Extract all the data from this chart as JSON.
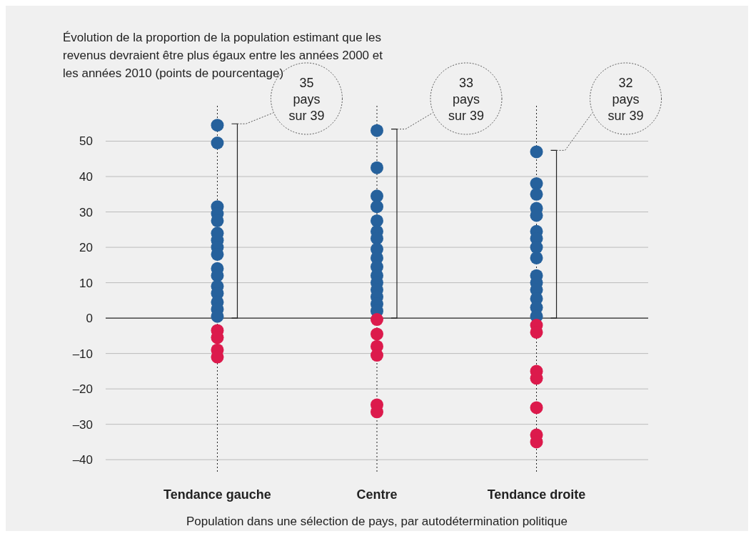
{
  "chart_data": {
    "type": "scatter",
    "ylabel": "Évolution de la proportion de la population estimant que les revenus devraient être plus égaux entre les années 2000 et les années 2010 (points de pourcentage)",
    "xlabel": "Population dans une sélection de pays, par autodétermination politique",
    "categories": [
      "Tendance gauche",
      "Centre",
      "Tendance droite"
    ],
    "ylim": [
      -44,
      60
    ],
    "yticks": [
      {
        "value": -40,
        "label": "–40"
      },
      {
        "value": -30,
        "label": "–30"
      },
      {
        "value": -20,
        "label": "–20"
      },
      {
        "value": -10,
        "label": "–10"
      },
      0,
      10,
      20,
      30,
      40,
      50
    ],
    "grid": true,
    "marker": "circle",
    "series": [
      {
        "color": "#26619c",
        "x": [
          "Tendance gauche",
          "Tendance gauche",
          "Tendance gauche",
          "Tendance gauche",
          "Tendance gauche",
          "Tendance gauche",
          "Tendance gauche",
          "Tendance gauche",
          "Tendance gauche",
          "Tendance gauche",
          "Tendance gauche",
          "Tendance gauche",
          "Tendance gauche",
          "Tendance gauche",
          "Tendance gauche",
          "Tendance gauche",
          "Centre",
          "Centre",
          "Centre",
          "Centre",
          "Centre",
          "Centre",
          "Centre",
          "Centre",
          "Centre",
          "Centre",
          "Centre",
          "Centre",
          "Centre",
          "Centre",
          "Centre",
          "Centre",
          "Tendance droite",
          "Tendance droite",
          "Tendance droite",
          "Tendance droite",
          "Tendance droite",
          "Tendance droite",
          "Tendance droite",
          "Tendance droite",
          "Tendance droite",
          "Tendance droite",
          "Tendance droite",
          "Tendance droite",
          "Tendance droite",
          "Tendance droite",
          "Tendance droite"
        ],
        "values": [
          54.5,
          49.5,
          31.5,
          29.5,
          27.5,
          24,
          22,
          20,
          18,
          14,
          12,
          9,
          7,
          4.5,
          2.5,
          0.5,
          53,
          42.5,
          34.5,
          31.5,
          27.5,
          24.5,
          22.5,
          19.5,
          17,
          14.5,
          12,
          10,
          8,
          6,
          4,
          2,
          47,
          38,
          35,
          31,
          29,
          24.5,
          22.5,
          20,
          17,
          12,
          10,
          8,
          5.5,
          3,
          0.5
        ]
      },
      {
        "color": "#dc1a4c",
        "x": [
          "Tendance gauche",
          "Tendance gauche",
          "Tendance gauche",
          "Tendance gauche",
          "Centre",
          "Centre",
          "Centre",
          "Centre",
          "Centre",
          "Centre",
          "Tendance droite",
          "Tendance droite",
          "Tendance droite",
          "Tendance droite",
          "Tendance droite",
          "Tendance droite",
          "Tendance droite"
        ],
        "values": [
          -3.5,
          -5.5,
          -9,
          -11,
          -0.4,
          -4.5,
          -8,
          -10.5,
          -24.5,
          -26.5,
          -2,
          -4,
          -15,
          -17,
          -25.3,
          -33,
          -35
        ]
      }
    ],
    "annotations": [
      "35 pays sur 39",
      "33 pays sur 39",
      "32 pays sur 39"
    ]
  }
}
